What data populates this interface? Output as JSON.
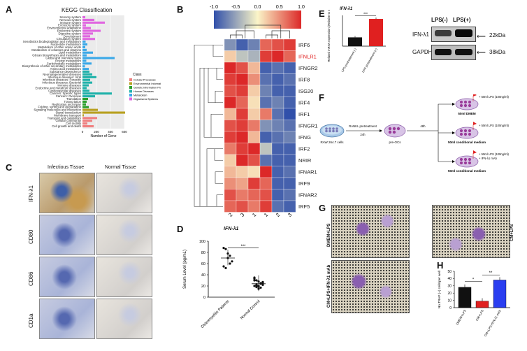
{
  "panels": {
    "A": "A",
    "B": "B",
    "C": "C",
    "D": "D",
    "E": "E",
    "F": "F",
    "G": "G",
    "H": "H"
  },
  "colors": {
    "cellular": "#f08080",
    "environmental": "#b8a020",
    "genetic": "#2ca02c",
    "human_disease": "#20b2aa",
    "metabolism": "#3aa8e8",
    "organismal": "#e066e0"
  },
  "kegg": {
    "title": "KEGG Classification",
    "xlabel": "Number of Gene",
    "ticks": [
      "0",
      "200",
      "400",
      "600"
    ],
    "legend_title": "Class",
    "legend": [
      "Cellular Processes",
      "Environmental Information Processing",
      "Genetic Information Processing",
      "Human Diseases",
      "Metabolism",
      "Organismal Systems"
    ]
  },
  "chart_data": {
    "type": "bar",
    "title": "KEGG Classification",
    "xlabel": "Number of Gene",
    "xlim": [
      0,
      600
    ],
    "categories": [
      "Sensory system",
      "Nervous system",
      "Immune system",
      "Excretory system",
      "Environmental adaptation",
      "Endocrine system",
      "Digestive system",
      "Development",
      "Circulatory system",
      "Xenobiotics biodegradation and metabolism",
      "Nucleotide metabolism",
      "Metabolism of other amino acids",
      "Metabolism of cofactors and vitamins",
      "Lipid metabolism",
      "Glycan biosynthesis and metabolism",
      "Global and overview maps",
      "Energy metabolism",
      "Carbohydrate metabolism",
      "Biosynthesis of other secondary metabolites",
      "Amino acid metabolism",
      "Substance dependence",
      "Neurodegenerative diseases",
      "Infectious diseases: Viral",
      "Infectious diseases: Parasitic",
      "Infectious diseases: Bacterial",
      "Immune diseases",
      "Endocrine and metabolic diseases",
      "Cardiovascular diseases",
      "Cancers: Specific types",
      "Cancers: Overview",
      "Translation",
      "Transcription",
      "Replication and repair",
      "Folding, sorting and degradation",
      "Signaling molecules and interaction",
      "Signal transduction",
      "Membrane transport",
      "Transport and catabolism",
      "Cellular community",
      "Cell motility",
      "Cell growth and death"
    ],
    "classes": [
      "organismal",
      "organismal",
      "organismal",
      "organismal",
      "organismal",
      "organismal",
      "organismal",
      "organismal",
      "organismal",
      "metabolism",
      "metabolism",
      "metabolism",
      "metabolism",
      "metabolism",
      "metabolism",
      "metabolism",
      "metabolism",
      "metabolism",
      "metabolism",
      "metabolism",
      "human_disease",
      "human_disease",
      "human_disease",
      "human_disease",
      "human_disease",
      "human_disease",
      "human_disease",
      "human_disease",
      "human_disease",
      "human_disease",
      "genetic",
      "genetic",
      "genetic",
      "genetic",
      "environmental",
      "environmental",
      "environmental",
      "cellular",
      "cellular",
      "cellular",
      "cellular"
    ],
    "values": [
      40,
      170,
      320,
      50,
      120,
      260,
      150,
      110,
      180,
      45,
      70,
      40,
      60,
      150,
      60,
      460,
      55,
      130,
      35,
      90,
      100,
      140,
      200,
      110,
      140,
      90,
      60,
      100,
      420,
      180,
      80,
      60,
      50,
      90,
      220,
      610,
      20,
      210,
      140,
      70,
      160
    ]
  },
  "heatmap": {
    "scale": [
      "-1.0",
      "-0.5",
      "0.0",
      "0.5",
      "1.0"
    ],
    "columns": [
      "Normal tissue 2",
      "Normal tissue 3",
      "Normal tissue 1",
      "Infectious tissue 1",
      "Infectious tissue 2",
      "Infectious tissue 3"
    ],
    "rows": [
      "IRF6",
      "IFNLR1",
      "IFNGR2",
      "IRF8",
      "ISG20",
      "IRF4",
      "IRF1",
      "IFNGR1",
      "IFNG",
      "IRF2",
      "NRIR",
      "IFNAR1",
      "IRF9",
      "IFNAR2",
      "IRF5"
    ],
    "values": [
      [
        -0.6,
        -0.9,
        -0.7,
        0.7,
        0.8,
        0.9
      ],
      [
        0.2,
        -0.3,
        -0.4,
        0.9,
        1.0,
        0.7
      ],
      [
        1.0,
        0.8,
        0.3,
        -0.9,
        -0.8,
        -0.9
      ],
      [
        0.9,
        1.0,
        0.5,
        -0.8,
        -0.9,
        -0.8
      ],
      [
        0.8,
        0.9,
        0.2,
        -0.7,
        -0.9,
        -0.9
      ],
      [
        1.0,
        0.7,
        0.1,
        -0.8,
        -0.7,
        -0.9
      ],
      [
        0.3,
        0.9,
        0.2,
        0.6,
        -0.8,
        -1.0
      ],
      [
        0.8,
        0.9,
        0.6,
        -0.6,
        -0.7,
        -0.8
      ],
      [
        0.9,
        1.0,
        0.3,
        -0.9,
        -0.8,
        -0.7
      ],
      [
        0.6,
        0.9,
        1.0,
        -0.3,
        -0.9,
        -0.9
      ],
      [
        0.2,
        1.0,
        0.8,
        -0.8,
        -0.9,
        -0.9
      ],
      [
        0.3,
        0.2,
        0.1,
        1.0,
        -0.9,
        -0.8
      ],
      [
        0.5,
        0.4,
        0.9,
        0.7,
        -0.9,
        -0.9
      ],
      [
        0.8,
        0.6,
        0.7,
        0.8,
        -0.9,
        -0.8
      ],
      [
        0.7,
        0.8,
        0.6,
        0.9,
        -0.8,
        -0.9
      ]
    ]
  },
  "tissue": {
    "headers": [
      "Infectious Tissue",
      "Normal Tissue"
    ],
    "markers": [
      "IFN-λ1",
      "CD80",
      "CD86",
      "CD1a"
    ]
  },
  "serum": {
    "title": "IFN-λ1",
    "ylabel": "Serum Level (pg/mL)",
    "yticks": [
      "0",
      "20",
      "40",
      "60",
      "80",
      "100"
    ],
    "groups": [
      "Osteomyelitis Patients",
      "Normal Control"
    ],
    "sig": "***",
    "points": [
      [
        88,
        86,
        70,
        60,
        64,
        55,
        52,
        78,
        74
      ],
      [
        35,
        30,
        28,
        25,
        22,
        20,
        18,
        15,
        24,
        27,
        30,
        21,
        19,
        17,
        26,
        33,
        23,
        20
      ]
    ],
    "means": [
      70,
      24
    ]
  },
  "qpcr": {
    "title": "IFN-λ1",
    "ylabel": "Related mRNA expression (Relative to GAPDH)",
    "groups": [
      "LPS-pretreatment (-)",
      "LPS-pretreatment (+)"
    ],
    "values": [
      1.0,
      3.1
    ],
    "sig": "***"
  },
  "blot": {
    "headers": [
      "LPS(-)",
      "LPS(+)"
    ],
    "proteins": [
      "IFN-λ1",
      "GAPDH"
    ],
    "sizes": [
      "22kDa",
      "38kDa"
    ]
  },
  "schematic": {
    "start": "RAW 264.7 cells",
    "step1": "RANKL pretreatment",
    "time1": "24h",
    "mid": "pre-OCs",
    "time2": "48h",
    "arms": [
      {
        "treat1": "+ 50ml LPS (100ng/ml)",
        "treat2": "",
        "medium": "50ml DMEM"
      },
      {
        "treat1": "+ 50ml LPS (100ng/ml)",
        "treat2": "",
        "medium": "50ml conditional medium"
      },
      {
        "treat1": "+ 50ml LPS (100ng/ml)",
        "treat2": "+ IFN-λ1 mAb",
        "medium": "50ml conditional medium"
      }
    ]
  },
  "micro": {
    "labels": [
      "DMEM+LPS",
      "CM+LPS",
      "CM+LPS+IFN-λ1 mAb"
    ]
  },
  "trap": {
    "ylabel": "No.TRAP (+) cells/per well",
    "yticks": [
      "0",
      "10",
      "20",
      "30",
      "40",
      "50"
    ],
    "groups": [
      "DMEM+LPS",
      "CM+LPS",
      "CM+LPS+IFN-λ1 mAb"
    ],
    "values": [
      28,
      9,
      38
    ],
    "colors": [
      "#111111",
      "#e02020",
      "#2a3ef0"
    ],
    "sig": [
      "*",
      "**"
    ]
  }
}
